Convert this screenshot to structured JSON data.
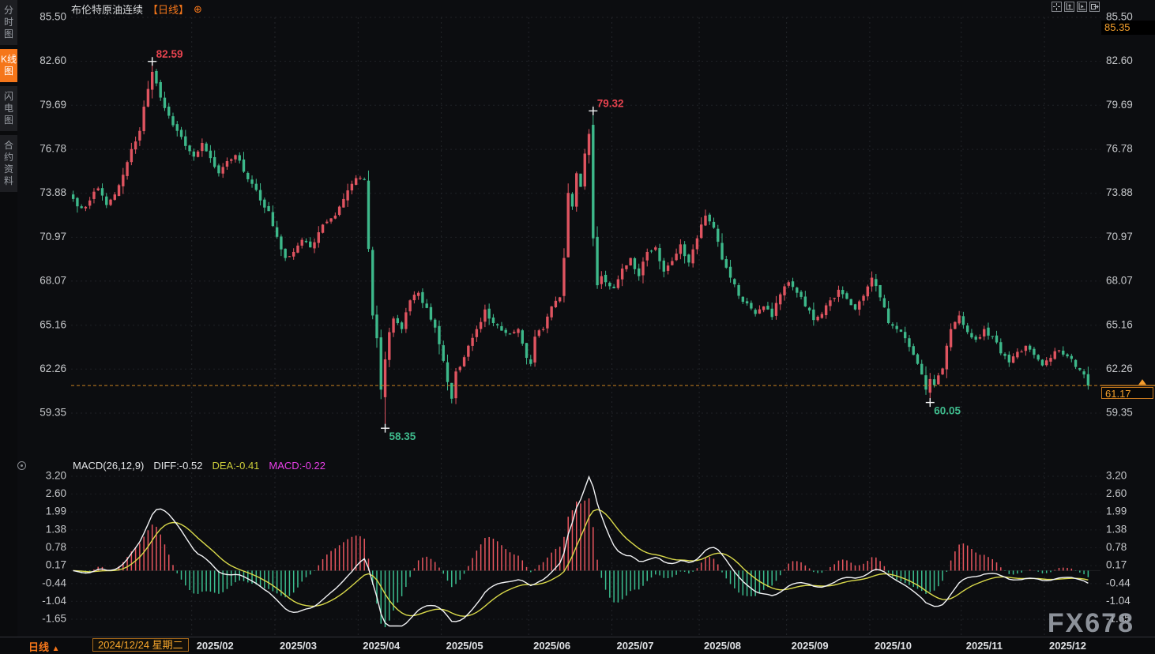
{
  "window": {
    "title": "布伦特原油连续",
    "period_tag": "【日线】",
    "watermark": "FX678"
  },
  "sidebar": {
    "items": [
      {
        "name": "timeshare-chart",
        "label": "分时图",
        "active": false
      },
      {
        "name": "kline-chart",
        "label": "K线图",
        "active": true
      },
      {
        "name": "lightning-chart",
        "label": "闪电图",
        "active": false
      },
      {
        "name": "contract-info",
        "label": "合约资料",
        "active": false
      }
    ]
  },
  "toolbar": {
    "icons": [
      {
        "name": "crosshair-icon"
      },
      {
        "name": "axis-range-icon"
      },
      {
        "name": "axis-auto-icon"
      },
      {
        "name": "export-icon"
      }
    ]
  },
  "price_axis": {
    "ticks": [
      85.5,
      82.6,
      79.69,
      76.78,
      73.88,
      70.97,
      68.07,
      65.16,
      62.26,
      59.35
    ],
    "high_badge": "85.35",
    "last_price_badge": "61.17"
  },
  "macd_panel": {
    "title": "MACD(26,12,9)",
    "diff_label": "DIFF:-0.52",
    "dea_label": "DEA:-0.41",
    "macd_label": "MACD:-0.22",
    "ticks": [
      3.2,
      2.6,
      1.99,
      1.38,
      0.78,
      0.17,
      -0.44,
      -1.04,
      -1.65
    ]
  },
  "bottom_bar": {
    "period_label": "日线",
    "period_arrow": "▲",
    "date_label": "2024/12/24 星期二",
    "months": [
      "2025/02",
      "2025/03",
      "2025/04",
      "2025/05",
      "2025/06",
      "2025/07",
      "2025/08",
      "2025/09",
      "2025/10",
      "2025/11",
      "2025/12"
    ]
  },
  "chart_data": {
    "type": "candlestick",
    "title": "布伦特原油连续 日线",
    "num_days": 245,
    "y_axis": {
      "ticks": [
        85.5,
        82.6,
        79.69,
        76.78,
        73.88,
        70.97,
        68.07,
        65.16,
        62.26,
        59.35
      ]
    },
    "x_axis": {
      "first_date": "2024/12/24 星期二",
      "month_start_days": [
        [
          "2025/02",
          29
        ],
        [
          "2025/03",
          49
        ],
        [
          "2025/04",
          69
        ],
        [
          "2025/05",
          89
        ],
        [
          "2025/06",
          110
        ],
        [
          "2025/07",
          130
        ],
        [
          "2025/08",
          151
        ],
        [
          "2025/09",
          172
        ],
        [
          "2025/10",
          192
        ],
        [
          "2025/11",
          214
        ],
        [
          "2025/12",
          234
        ]
      ]
    },
    "last_close": 61.17,
    "session_high_badge": 85.35,
    "close_anchors": [
      [
        0,
        73.5
      ],
      [
        2,
        72.9
      ],
      [
        4,
        73.4
      ],
      [
        6,
        74.2
      ],
      [
        8,
        73.1
      ],
      [
        10,
        73.8
      ],
      [
        12,
        75.1
      ],
      [
        14,
        76.8
      ],
      [
        16,
        78.0
      ],
      [
        17,
        79.6
      ],
      [
        19,
        81.9
      ],
      [
        21,
        80.2
      ],
      [
        23,
        79.0
      ],
      [
        25,
        78.0
      ],
      [
        27,
        77.0
      ],
      [
        29,
        76.3
      ],
      [
        31,
        77.2
      ],
      [
        33,
        76.2
      ],
      [
        35,
        75.2
      ],
      [
        37,
        76.0
      ],
      [
        39,
        76.4
      ],
      [
        41,
        75.3
      ],
      [
        43,
        74.5
      ],
      [
        45,
        73.4
      ],
      [
        47,
        72.7
      ],
      [
        49,
        71.0
      ],
      [
        51,
        69.6
      ],
      [
        53,
        70.0
      ],
      [
        55,
        70.8
      ],
      [
        57,
        70.3
      ],
      [
        59,
        71.3
      ],
      [
        61,
        72.0
      ],
      [
        63,
        72.4
      ],
      [
        65,
        73.5
      ],
      [
        67,
        74.5
      ],
      [
        69,
        74.9
      ],
      [
        70,
        74.8
      ],
      [
        71,
        70.2
      ],
      [
        72,
        65.8
      ],
      [
        73,
        64.3
      ],
      [
        74,
        60.9
      ],
      [
        75,
        62.9
      ],
      [
        76,
        64.7
      ],
      [
        77,
        65.6
      ],
      [
        79,
        64.9
      ],
      [
        81,
        66.8
      ],
      [
        83,
        67.3
      ],
      [
        85,
        66.3
      ],
      [
        87,
        65.0
      ],
      [
        88,
        63.9
      ],
      [
        89,
        62.8
      ],
      [
        90,
        61.4
      ],
      [
        91,
        60.3
      ],
      [
        92,
        62.1
      ],
      [
        93,
        62.4
      ],
      [
        95,
        63.8
      ],
      [
        97,
        64.9
      ],
      [
        99,
        66.2
      ],
      [
        101,
        65.3
      ],
      [
        103,
        64.8
      ],
      [
        105,
        64.6
      ],
      [
        107,
        64.9
      ],
      [
        109,
        63.0
      ],
      [
        110,
        62.6
      ],
      [
        111,
        64.4
      ],
      [
        113,
        64.9
      ],
      [
        115,
        66.4
      ],
      [
        117,
        67.0
      ],
      [
        118,
        69.6
      ],
      [
        119,
        73.9
      ],
      [
        120,
        73.0
      ],
      [
        121,
        75.2
      ],
      [
        122,
        74.3
      ],
      [
        123,
        76.5
      ],
      [
        124,
        77.8
      ],
      [
        125,
        70.9
      ],
      [
        126,
        67.8
      ],
      [
        127,
        68.4
      ],
      [
        128,
        68.0
      ],
      [
        130,
        67.6
      ],
      [
        132,
        68.9
      ],
      [
        134,
        69.6
      ],
      [
        136,
        68.4
      ],
      [
        138,
        70.0
      ],
      [
        140,
        70.3
      ],
      [
        142,
        68.7
      ],
      [
        144,
        69.4
      ],
      [
        146,
        70.5
      ],
      [
        148,
        69.3
      ],
      [
        150,
        70.9
      ],
      [
        152,
        72.4
      ],
      [
        154,
        71.6
      ],
      [
        156,
        69.5
      ],
      [
        158,
        68.3
      ],
      [
        160,
        67.1
      ],
      [
        162,
        66.6
      ],
      [
        164,
        65.9
      ],
      [
        166,
        66.4
      ],
      [
        168,
        65.7
      ],
      [
        170,
        67.2
      ],
      [
        172,
        68.0
      ],
      [
        174,
        67.3
      ],
      [
        176,
        66.4
      ],
      [
        178,
        65.5
      ],
      [
        180,
        65.9
      ],
      [
        182,
        66.8
      ],
      [
        184,
        67.5
      ],
      [
        186,
        66.9
      ],
      [
        188,
        66.2
      ],
      [
        190,
        67.1
      ],
      [
        192,
        68.3
      ],
      [
        194,
        67.0
      ],
      [
        196,
        65.3
      ],
      [
        198,
        64.9
      ],
      [
        200,
        64.3
      ],
      [
        202,
        63.2
      ],
      [
        204,
        61.9
      ],
      [
        205,
        60.9
      ],
      [
        206,
        61.6
      ],
      [
        207,
        61.2
      ],
      [
        209,
        62.3
      ],
      [
        210,
        63.8
      ],
      [
        211,
        64.9
      ],
      [
        213,
        65.8
      ],
      [
        215,
        64.7
      ],
      [
        217,
        64.2
      ],
      [
        219,
        64.9
      ],
      [
        221,
        64.4
      ],
      [
        223,
        63.3
      ],
      [
        225,
        62.7
      ],
      [
        227,
        63.4
      ],
      [
        229,
        63.8
      ],
      [
        231,
        63.2
      ],
      [
        233,
        62.5
      ],
      [
        235,
        63.0
      ],
      [
        237,
        63.5
      ],
      [
        239,
        63.1
      ],
      [
        241,
        62.4
      ],
      [
        243,
        61.9
      ],
      [
        244,
        61.17
      ]
    ],
    "key_points": [
      {
        "day": 19,
        "side": "high",
        "high": 82.59,
        "label": "82.59"
      },
      {
        "day": 75,
        "side": "low",
        "open": 60.4,
        "low": 58.35,
        "label": "58.35"
      },
      {
        "day": 125,
        "side": "high",
        "open": 78.4,
        "high": 79.32,
        "label": "79.32"
      },
      {
        "day": 206,
        "side": "low",
        "open": 60.7,
        "low": 60.05,
        "label": "60.05"
      },
      {
        "day": 244,
        "low": 60.9
      }
    ],
    "macd": {
      "params": [
        26,
        12,
        9
      ],
      "current": {
        "diff": -0.52,
        "dea": -0.41,
        "macd": -0.22
      },
      "y_ticks": [
        3.2,
        2.6,
        1.99,
        1.38,
        0.78,
        0.17,
        -0.44,
        -1.04,
        -1.65
      ]
    },
    "colors": {
      "up": "#df5460",
      "down": "#3db88a",
      "hist_up": "#e8565f",
      "hist_down": "#3bbd8f",
      "diff_line": "#f2f3f5",
      "dea_line": "#d9d94a",
      "annotation_high": "#e8434f",
      "annotation_low": "#3fbb8d",
      "last_price_line": "#c8831f",
      "accent_orange": "#f5761a",
      "marker_cross": "#f5f6f7"
    },
    "legend": [
      "DIFF",
      "DEA",
      "MACD"
    ]
  }
}
